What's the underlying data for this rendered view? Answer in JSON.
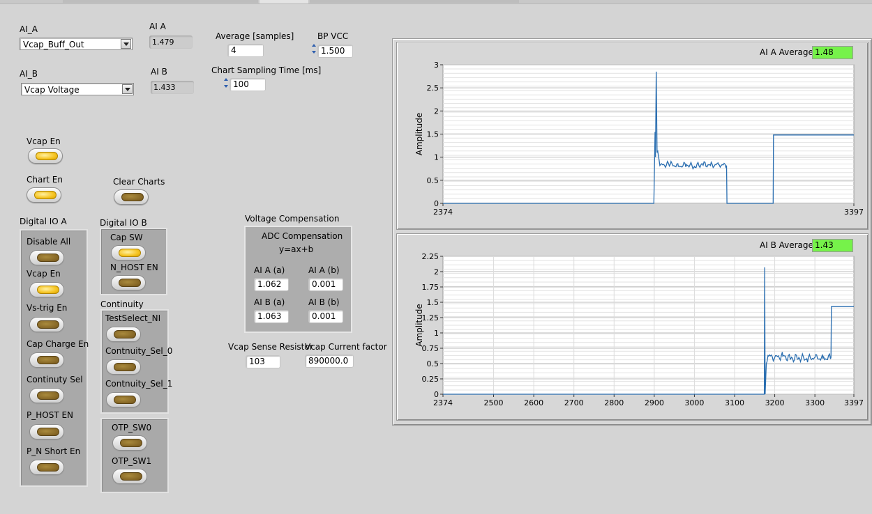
{
  "top": {
    "ai_a_label": "AI_A",
    "ai_a_value": "Vcap_Buff_Out",
    "ai_b_label": "AI_B",
    "ai_b_value": "Vcap Voltage",
    "ai_a_ind_label": "AI A",
    "ai_a_ind_value": "1.479",
    "ai_b_ind_label": "AI B",
    "ai_b_ind_value": "1.433",
    "average_label": "Average [samples]",
    "average_value": "4",
    "bpvcc_label": "BP VCC",
    "bpvcc_value": "1.500",
    "chart_time_label": "Chart Sampling Time [ms]",
    "chart_time_value": "100"
  },
  "left": {
    "vcap_en": "Vcap En",
    "chart_en": "Chart En",
    "clear_charts": "Clear Charts"
  },
  "dio_a": {
    "title": "Digital IO  A",
    "items": [
      "Disable All",
      "Vcap En",
      "Vs-trig En",
      "Cap Charge En",
      "Continuty Sel",
      "P_HOST EN",
      "P_N Short En"
    ],
    "states": [
      false,
      true,
      false,
      false,
      false,
      false,
      false
    ]
  },
  "dio_b": {
    "title": "Digital IO B",
    "items": [
      "Cap SW",
      "N_HOST EN"
    ],
    "states": [
      true,
      false
    ]
  },
  "continuity": {
    "title": "Continuity",
    "items": [
      "TestSelect_NI",
      "Contnuity_Sel_0",
      "Contnuity_Sel_1"
    ]
  },
  "otp": {
    "items": [
      "OTP_SW0",
      "OTP_SW1"
    ]
  },
  "comp": {
    "title": "Voltage Compensation",
    "sub": "ADC Compensation",
    "formula": "y=ax+b",
    "aia_a_label": "AI A (a)",
    "aia_a": "1.062",
    "aia_b_label": "AI A (b)",
    "aia_b": "0.001",
    "aib_a_label": "AI B (a)",
    "aib_a": "1.063",
    "aib_b_label": "AI B (b)",
    "aib_b": "0.001",
    "sense_label": "Vcap Sense Resistor",
    "sense": "103",
    "factor_label": "Vcap Current factor",
    "factor": "890000.0"
  },
  "chart_a": {
    "avg_label": "AI  A Average",
    "avg_value": "1.48"
  },
  "chart_b": {
    "avg_label": "AI  B Average",
    "avg_value": "1.43"
  },
  "colors": {
    "trace": "#2a6eb0",
    "avg_green": "#76f24a",
    "lamp_on": "#f5c320"
  },
  "chart_data": [
    {
      "type": "line",
      "ylabel": "Amplitude",
      "xlim": [
        2374,
        3397
      ],
      "ylim": [
        0,
        3
      ],
      "yticks": [
        "0",
        "0.5",
        "1",
        "1.5",
        "2",
        "2.5",
        "3"
      ],
      "xticks": [
        "2374",
        "3397"
      ],
      "series": [
        {
          "x": [
            2374,
            2899,
            2902,
            2903,
            2905,
            2907,
            2910,
            2914,
            2940,
            2960,
            2980,
            3000,
            3020,
            3040,
            3060,
            3080,
            3081,
            3082,
            3196,
            3197,
            3198,
            3397
          ],
          "y": [
            0,
            0,
            1.55,
            1.0,
            2.85,
            1.1,
            1.05,
            0.82,
            0.85,
            0.8,
            0.84,
            0.8,
            0.85,
            0.82,
            0.84,
            0.82,
            0,
            0,
            0,
            1.48,
            1.48,
            1.48
          ]
        }
      ]
    },
    {
      "type": "line",
      "ylabel": "Amplitude",
      "xlim": [
        2374,
        3397
      ],
      "ylim": [
        0,
        2.25
      ],
      "yticks": [
        "0",
        "0.25",
        "0.5",
        "0.75",
        "1",
        "1.25",
        "1.5",
        "1.75",
        "2",
        "2.25"
      ],
      "xticks": [
        "2374",
        "2500",
        "2600",
        "2700",
        "2800",
        "2900",
        "3000",
        "3100",
        "3200",
        "3300",
        "3397"
      ],
      "series": [
        {
          "x": [
            2374,
            3174,
            3175,
            3176,
            3179,
            3185,
            3200,
            3220,
            3240,
            3260,
            3280,
            3300,
            3320,
            3340,
            3341,
            3343,
            3397
          ],
          "y": [
            0,
            0,
            2.07,
            0,
            0.5,
            0.62,
            0.6,
            0.62,
            0.58,
            0.6,
            0.58,
            0.6,
            0.58,
            0.6,
            1.43,
            1.43,
            1.43
          ]
        }
      ]
    }
  ]
}
